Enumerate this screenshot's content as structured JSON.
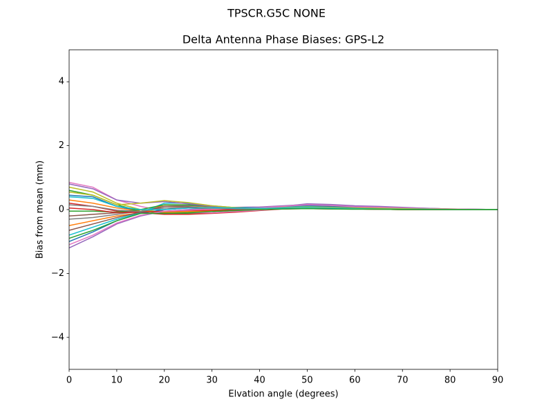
{
  "chart_data": {
    "type": "line",
    "suptitle": "TPSCR.G5C       NONE",
    "title": "Delta Antenna Phase Biases: GPS-L2",
    "xlabel": "Elvation angle (degrees)",
    "ylabel": "Bias from mean (mm)",
    "x": [
      0,
      5,
      10,
      15,
      20,
      25,
      30,
      35,
      40,
      45,
      50,
      55,
      60,
      65,
      70,
      75,
      80,
      85,
      90
    ],
    "xlim": [
      0,
      90
    ],
    "xticks": [
      0,
      10,
      20,
      30,
      40,
      50,
      60,
      70,
      80,
      90
    ],
    "ylim": [
      -5,
      5
    ],
    "yticks": [
      {
        "value": -4,
        "label": "−4"
      },
      {
        "value": -2,
        "label": "−2"
      },
      0,
      2,
      4
    ],
    "series": [
      {
        "color": "#1f77b4",
        "values": [
          0.45,
          0.4,
          0.1,
          -0.05,
          -0.1,
          -0.08,
          -0.05,
          0,
          0.03,
          0.06,
          0.08,
          0.06,
          0.04,
          0.03,
          0.02,
          0.01,
          0,
          0,
          0
        ]
      },
      {
        "color": "#ff7f0e",
        "values": [
          -0.5,
          -0.35,
          -0.2,
          -0.1,
          0.15,
          0.12,
          0.08,
          0.05,
          0.04,
          0.08,
          0.1,
          0.08,
          0.05,
          0.04,
          0.03,
          0.02,
          0.01,
          0,
          0
        ]
      },
      {
        "color": "#2ca02c",
        "values": [
          0.6,
          0.45,
          0.15,
          -0.05,
          -0.12,
          -0.12,
          -0.1,
          -0.05,
          0.02,
          0.05,
          0.06,
          0.04,
          0.02,
          0.01,
          0,
          0,
          0,
          0,
          0
        ]
      },
      {
        "color": "#d62728",
        "values": [
          0.2,
          0.1,
          -0.05,
          -0.1,
          -0.15,
          -0.15,
          -0.12,
          -0.08,
          -0.03,
          0.02,
          0.04,
          0.03,
          0.02,
          0.01,
          0,
          0,
          0,
          0,
          0
        ]
      },
      {
        "color": "#9467bd",
        "values": [
          -1.2,
          -0.85,
          -0.45,
          -0.2,
          -0.05,
          0,
          0.05,
          0.07,
          0.08,
          0.12,
          0.16,
          0.14,
          0.1,
          0.08,
          0.06,
          0.04,
          0.02,
          0.01,
          0
        ]
      },
      {
        "color": "#8c564b",
        "values": [
          -0.2,
          -0.15,
          -0.1,
          -0.05,
          0.05,
          0.05,
          0.03,
          0.02,
          0.02,
          0.04,
          0.05,
          0.04,
          0.03,
          0.02,
          0.01,
          0.01,
          0,
          0,
          0
        ]
      },
      {
        "color": "#e377c2",
        "values": [
          0.85,
          0.7,
          0.3,
          0.1,
          -0.05,
          -0.1,
          -0.1,
          -0.06,
          -0.02,
          0.03,
          0.05,
          0.05,
          0.04,
          0.03,
          0.02,
          0.01,
          0,
          0,
          0
        ]
      },
      {
        "color": "#7f7f7f",
        "values": [
          -0.3,
          -0.25,
          -0.15,
          -0.05,
          0.1,
          0.12,
          0.1,
          0.06,
          0.04,
          0.06,
          0.08,
          0.07,
          0.05,
          0.03,
          0.02,
          0.01,
          0,
          0,
          0
        ]
      },
      {
        "color": "#bcbd22",
        "values": [
          0.7,
          0.55,
          0.2,
          0,
          -0.08,
          -0.08,
          -0.06,
          -0.03,
          0.01,
          0.04,
          0.06,
          0.05,
          0.03,
          0.02,
          0.01,
          0,
          0,
          0,
          0
        ]
      },
      {
        "color": "#17becf",
        "values": [
          -0.8,
          -0.55,
          -0.3,
          -0.1,
          0.2,
          0.2,
          0.12,
          0.06,
          0.04,
          0.08,
          0.1,
          0.08,
          0.05,
          0.04,
          0.03,
          0.02,
          0.01,
          0,
          0
        ]
      },
      {
        "color": "#1f77b4",
        "values": [
          -1.0,
          -0.7,
          -0.35,
          -0.12,
          0,
          0.05,
          0.06,
          0.06,
          0.06,
          0.1,
          0.13,
          0.1,
          0.08,
          0.06,
          0.04,
          0.02,
          0.01,
          0,
          0
        ]
      },
      {
        "color": "#ff7f0e",
        "values": [
          0.3,
          0.2,
          0.05,
          -0.05,
          -0.08,
          -0.06,
          -0.04,
          -0.02,
          0,
          0.03,
          0.04,
          0.03,
          0.02,
          0.01,
          0,
          0,
          0,
          0,
          0
        ]
      },
      {
        "color": "#2ca02c",
        "values": [
          -0.05,
          -0.05,
          -0.08,
          0,
          0.15,
          0.15,
          0.1,
          0.06,
          0.04,
          0.05,
          0.07,
          0.06,
          0.04,
          0.02,
          0.01,
          0,
          0,
          0,
          0
        ]
      },
      {
        "color": "#d62728",
        "values": [
          0.05,
          0,
          -0.1,
          -0.08,
          -0.05,
          -0.03,
          -0.02,
          0,
          0.01,
          0.02,
          0.03,
          0.02,
          0.02,
          0.01,
          0,
          0,
          0,
          0,
          0
        ]
      },
      {
        "color": "#9467bd",
        "values": [
          0.8,
          0.65,
          0.3,
          0.2,
          0.25,
          0.18,
          0.1,
          0.05,
          0.02,
          0.1,
          0.18,
          0.16,
          0.12,
          0.1,
          0.07,
          0.04,
          0.02,
          0.01,
          0
        ]
      },
      {
        "color": "#8c564b",
        "values": [
          -0.65,
          -0.45,
          -0.25,
          -0.08,
          0.1,
          0.08,
          0.05,
          0.03,
          0.02,
          0.05,
          0.07,
          0.06,
          0.04,
          0.03,
          0.02,
          0.01,
          0,
          0,
          0
        ]
      },
      {
        "color": "#e377c2",
        "values": [
          -1.1,
          -0.8,
          -0.42,
          -0.18,
          -0.05,
          -0.02,
          0.02,
          0.04,
          0.06,
          0.1,
          0.15,
          0.13,
          0.09,
          0.07,
          0.05,
          0.03,
          0.02,
          0.01,
          0
        ]
      },
      {
        "color": "#7f7f7f",
        "values": [
          0.15,
          0.1,
          -0.02,
          -0.06,
          0.05,
          0.05,
          0.04,
          0.02,
          0.02,
          0.03,
          0.04,
          0.03,
          0.02,
          0.01,
          0.01,
          0,
          0,
          0,
          0
        ]
      },
      {
        "color": "#bcbd22",
        "values": [
          0.55,
          0.45,
          0.15,
          0.2,
          0.28,
          0.22,
          0.12,
          0.06,
          0.03,
          0.06,
          0.08,
          0.07,
          0.05,
          0.04,
          0.03,
          0.02,
          0.01,
          0,
          0
        ]
      },
      {
        "color": "#17becf",
        "values": [
          0.4,
          0.35,
          0.1,
          0,
          0,
          0.05,
          0.06,
          0.05,
          0.04,
          0.05,
          0.06,
          0.05,
          0.03,
          0.02,
          0.01,
          0.01,
          0,
          0,
          0
        ]
      },
      {
        "color": "#2ca02c",
        "values": [
          -0.9,
          -0.65,
          -0.35,
          -0.12,
          -0.12,
          -0.1,
          -0.06,
          -0.03,
          0,
          0.02,
          0.03,
          0.02,
          0.01,
          0.01,
          0,
          0,
          0,
          0,
          0
        ]
      }
    ]
  }
}
